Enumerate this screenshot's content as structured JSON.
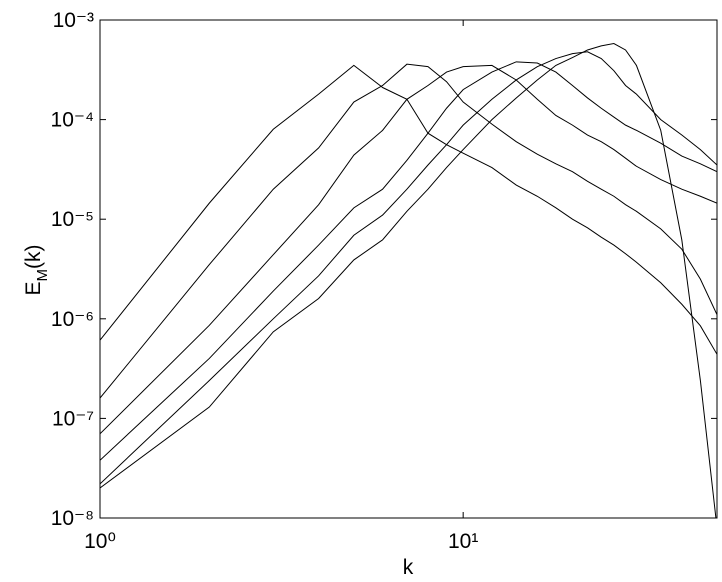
{
  "chart_data": {
    "type": "line",
    "xlabel": "k",
    "ylabel": "EM(k)",
    "xscale": "log",
    "yscale": "log",
    "xlim": [
      1,
      50
    ],
    "ylim": [
      1e-08,
      0.001
    ],
    "xticks": [
      {
        "value": 1,
        "label": "10⁰"
      },
      {
        "value": 10,
        "label": "10¹"
      }
    ],
    "yticks": [
      {
        "value": 1e-08,
        "label": "10⁻⁸"
      },
      {
        "value": 1e-07,
        "label": "10⁻⁷"
      },
      {
        "value": 1e-06,
        "label": "10⁻⁶"
      },
      {
        "value": 1e-05,
        "label": "10⁻⁵"
      },
      {
        "value": 0.0001,
        "label": "10⁻⁴"
      },
      {
        "value": 0.001,
        "label": "10⁻³"
      }
    ],
    "x": [
      1,
      2,
      3,
      4,
      5,
      6,
      7,
      8,
      9,
      10,
      12,
      14,
      16,
      18,
      20,
      22,
      24,
      26,
      28,
      30,
      35,
      40,
      45,
      50
    ],
    "series": [
      {
        "color": "#000000",
        "values": [
          6.1e-07,
          1.45e-05,
          8e-05,
          0.00018,
          0.00035,
          0.00021,
          0.00016,
          7.3e-05,
          5.6e-05,
          4.6e-05,
          3.3e-05,
          2.2e-05,
          1.7e-05,
          1.3e-05,
          1e-05,
          8.2e-06,
          6.6e-06,
          5.5e-06,
          4.5e-06,
          3.7e-06,
          2.3e-06,
          1.4e-06,
          8.5e-07,
          4.4e-07
        ]
      },
      {
        "color": "#000000",
        "values": [
          1.6e-07,
          3.5e-06,
          2e-05,
          5.2e-05,
          0.00015,
          0.00022,
          0.00036,
          0.00034,
          0.00024,
          0.00015,
          9e-05,
          6e-05,
          4.5e-05,
          3.6e-05,
          3e-05,
          2.4e-05,
          2e-05,
          1.7e-05,
          1.4e-05,
          1.2e-05,
          8e-06,
          5e-06,
          2.5e-06,
          1.1e-06
        ]
      },
      {
        "color": "#000000",
        "values": [
          7e-08,
          8.6e-07,
          4.4e-06,
          1.4e-05,
          4.4e-05,
          7.8e-05,
          0.00016,
          0.00022,
          0.0003,
          0.00034,
          0.00035,
          0.00025,
          0.00016,
          0.00011,
          8.8e-05,
          7e-05,
          6e-05,
          5e-05,
          4.1e-05,
          3.4e-05,
          2.5e-05,
          2e-05,
          1.7e-05,
          1.45e-05
        ]
      },
      {
        "color": "#000000",
        "values": [
          3.8e-08,
          4e-07,
          1.9e-06,
          5.5e-06,
          1.3e-05,
          2e-05,
          3.9e-05,
          7.3e-05,
          0.00013,
          0.0002,
          0.0003,
          0.00038,
          0.00037,
          0.0003,
          0.00022,
          0.000165,
          0.00013,
          0.000106,
          8.8e-05,
          7.8e-05,
          5.8e-05,
          4.3e-05,
          3.6e-05,
          3e-05
        ]
      },
      {
        "color": "#000000",
        "values": [
          2.2e-08,
          2.4e-07,
          1e-06,
          2.7e-06,
          6.9e-06,
          1.1e-05,
          2e-05,
          3.5e-05,
          5.6e-05,
          8.8e-05,
          0.00016,
          0.00025,
          0.00034,
          0.00041,
          0.00046,
          0.00048,
          0.00041,
          0.00031,
          0.00022,
          0.00018,
          0.0001,
          7e-05,
          5e-05,
          3.5e-05
        ]
      },
      {
        "color": "#000000",
        "values": [
          2e-08,
          1.3e-07,
          7.4e-07,
          1.6e-06,
          3.9e-06,
          6.2e-06,
          1.2e-05,
          2e-05,
          3.3e-05,
          5e-05,
          0.0001,
          0.000165,
          0.00025,
          0.00035,
          0.00042,
          0.0005,
          0.00055,
          0.00058,
          0.0005,
          0.00035,
          7.8e-05,
          6.2e-06,
          2.4e-07,
          8e-09
        ]
      }
    ]
  }
}
